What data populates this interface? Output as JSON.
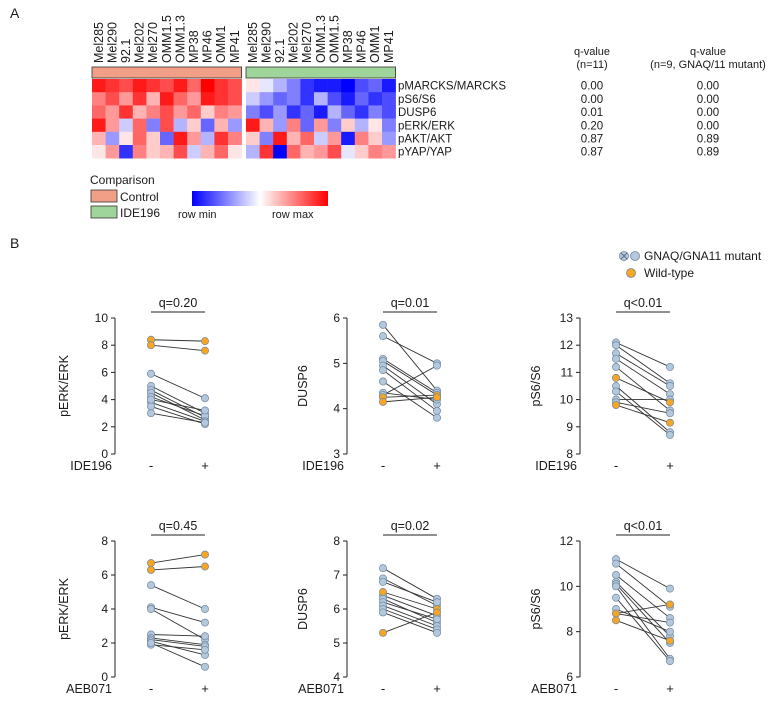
{
  "panel_labels": [
    "A",
    "B"
  ],
  "heatmap": {
    "samples_control": [
      "Mel285",
      "Mel290",
      "92.1",
      "Mel202",
      "Mel270",
      "OMM1.5",
      "OMM1.3",
      "MP38",
      "MP46",
      "OMM1",
      "MP41"
    ],
    "samples_ide": [
      "Mel285",
      "Mel290",
      "92.1",
      "Mel202",
      "Mel270",
      "OMM1.3",
      "OMM1.5",
      "MP38",
      "MP46",
      "OMM1",
      "MP41"
    ],
    "rows": [
      "pMARCKS/MARCKS",
      "pS6/S6",
      "DUSP6",
      "pERK/ERK",
      "pAKT/AKT",
      "pYAP/YAP"
    ],
    "qvalue_headers": [
      [
        "q-value",
        "(n=11)"
      ],
      [
        "q-value",
        "(n=9, GNAQ/11 mutant)"
      ]
    ],
    "q_all": [
      "0.00",
      "0.00",
      "0.01",
      "0.20",
      "0.87",
      "0.87"
    ],
    "q_mutant": [
      "0.00",
      "0.00",
      "0.00",
      "0.00",
      "0.89",
      "0.89"
    ],
    "values": [
      [
        0.9,
        0.8,
        0.7,
        0.9,
        0.8,
        0.7,
        0.9,
        0.6,
        1.0,
        0.8,
        0.7,
        0.1,
        -0.1,
        -0.3,
        -0.5,
        -0.8,
        -0.9,
        -0.9,
        -1.0,
        -0.7,
        -0.6,
        -0.9
      ],
      [
        0.5,
        0.7,
        0.4,
        0.8,
        0.3,
        0.9,
        0.6,
        0.4,
        0.9,
        0.8,
        0.7,
        -0.2,
        -0.4,
        -0.6,
        -0.5,
        -0.8,
        -0.3,
        -0.7,
        -0.9,
        -0.6,
        -0.8,
        -0.7
      ],
      [
        0.6,
        0.4,
        0.8,
        0.3,
        0.5,
        0.7,
        0.4,
        0.6,
        0.2,
        0.5,
        0.4,
        -0.5,
        -0.7,
        -0.4,
        -0.8,
        -0.6,
        -0.9,
        -0.3,
        -0.6,
        -0.8,
        -0.5,
        -0.7
      ],
      [
        0.9,
        0.4,
        -0.2,
        0.6,
        -0.5,
        0.7,
        -0.3,
        0.2,
        -0.6,
        0.3,
        -0.4,
        0.9,
        0.3,
        -0.4,
        0.5,
        -0.6,
        0.4,
        -0.5,
        0.2,
        -0.3,
        0.1,
        -0.5
      ],
      [
        0.3,
        -0.4,
        0.1,
        0.6,
        0.2,
        -0.6,
        0.9,
        0.4,
        -0.3,
        0.8,
        0.5,
        0.2,
        -0.5,
        0.9,
        0.3,
        0.6,
        -0.2,
        0.4,
        -0.9,
        0.5,
        0.2,
        -0.4
      ],
      [
        0.1,
        0.4,
        -0.8,
        0.5,
        0.2,
        0.3,
        0.7,
        -0.2,
        0.3,
        0.6,
        0.1,
        -0.3,
        0.8,
        -1.0,
        0.6,
        0.3,
        0.4,
        0.7,
        -0.1,
        0.2,
        0.5,
        0.4
      ]
    ],
    "legend_title": "Comparison",
    "legend_items": [
      {
        "label": "Control",
        "color": "#f19f86"
      },
      {
        "label": "IDE196",
        "color": "#9fd49a"
      }
    ],
    "scale_min_label": "row min",
    "scale_max_label": "row max",
    "scale_colors": {
      "min": "#0000ff",
      "mid": "#ffffff",
      "max": "#ff0000"
    }
  },
  "scatter_legend": [
    {
      "label": "GNAQ/GNA11 mutant",
      "color": "#b3c8dd"
    },
    {
      "label": "Wild-type",
      "color": "#f7a623"
    }
  ],
  "point_colors": {
    "mutant": "#b3c8dd",
    "wildtype": "#f7a623",
    "edge": "#6f879e"
  },
  "chart_data": [
    {
      "type": "scatter",
      "title": "q=0.20",
      "ylabel": "pERK/ERK",
      "treatment": "IDE196",
      "categories": [
        "-",
        "+"
      ],
      "ylim": [
        0,
        10
      ],
      "yticks": [
        "0",
        "2",
        "4",
        "6",
        "8",
        "10"
      ],
      "pairs_mutant": [
        [
          5.9,
          4.1
        ],
        [
          5.0,
          3.0
        ],
        [
          4.7,
          2.7
        ],
        [
          4.5,
          2.5
        ],
        [
          4.2,
          2.8
        ],
        [
          3.8,
          2.4
        ],
        [
          3.5,
          2.2
        ],
        [
          3.0,
          2.3
        ],
        [
          4.0,
          3.2
        ]
      ],
      "pairs_wildtype": [
        [
          8.4,
          8.3
        ],
        [
          8.0,
          7.6
        ]
      ]
    },
    {
      "type": "scatter",
      "title": "q=0.01",
      "ylabel": "DUSP6",
      "treatment": "IDE196",
      "categories": [
        "-",
        "+"
      ],
      "ylim": [
        3,
        6
      ],
      "yticks": [
        "3",
        "4",
        "5",
        "6"
      ],
      "pairs_mutant": [
        [
          5.85,
          4.4
        ],
        [
          5.6,
          5.0
        ],
        [
          5.1,
          4.35
        ],
        [
          5.05,
          4.3
        ],
        [
          4.95,
          4.1
        ],
        [
          4.85,
          3.95
        ],
        [
          4.6,
          3.8
        ],
        [
          4.35,
          4.2
        ],
        [
          4.3,
          4.95
        ]
      ],
      "pairs_wildtype": [
        [
          4.25,
          4.3
        ],
        [
          4.15,
          4.25
        ]
      ]
    },
    {
      "type": "scatter",
      "title": "q<0.01",
      "ylabel": "pS6/S6",
      "treatment": "IDE196",
      "categories": [
        "-",
        "+"
      ],
      "ylim": [
        8,
        13
      ],
      "yticks": [
        "8",
        "9",
        "10",
        "11",
        "12",
        "13"
      ],
      "pairs_mutant": [
        [
          12.1,
          11.2
        ],
        [
          12.0,
          10.6
        ],
        [
          11.7,
          10.5
        ],
        [
          11.5,
          10.2
        ],
        [
          11.2,
          9.6
        ],
        [
          10.5,
          8.8
        ],
        [
          10.3,
          8.7
        ],
        [
          10.0,
          10.0
        ],
        [
          9.9,
          9.5
        ]
      ],
      "pairs_wildtype": [
        [
          10.8,
          9.9
        ],
        [
          9.8,
          9.15
        ]
      ]
    },
    {
      "type": "scatter",
      "title": "q=0.45",
      "ylabel": "pERK/ERK",
      "treatment": "AEB071",
      "categories": [
        "-",
        "+"
      ],
      "ylim": [
        0,
        8
      ],
      "yticks": [
        "0",
        "2",
        "4",
        "6",
        "8"
      ],
      "pairs_mutant": [
        [
          5.4,
          4.0
        ],
        [
          4.1,
          3.2
        ],
        [
          4.0,
          2.2
        ],
        [
          2.5,
          2.4
        ],
        [
          2.3,
          1.9
        ],
        [
          2.2,
          1.8
        ],
        [
          2.1,
          1.3
        ],
        [
          1.9,
          1.6
        ],
        [
          2.0,
          0.6
        ]
      ],
      "pairs_wildtype": [
        [
          6.7,
          7.2
        ],
        [
          6.3,
          6.5
        ]
      ]
    },
    {
      "type": "scatter",
      "title": "q=0.02",
      "ylabel": "DUSP6",
      "treatment": "AEB071",
      "categories": [
        "-",
        "+"
      ],
      "ylim": [
        4,
        8
      ],
      "yticks": [
        "4",
        "5",
        "6",
        "7",
        "8"
      ],
      "pairs_mutant": [
        [
          7.2,
          6.3
        ],
        [
          6.9,
          6.1
        ],
        [
          6.8,
          6.2
        ],
        [
          6.4,
          5.8
        ],
        [
          6.3,
          5.6
        ],
        [
          6.2,
          5.7
        ],
        [
          6.1,
          5.5
        ],
        [
          6.0,
          5.4
        ],
        [
          5.9,
          5.3
        ]
      ],
      "pairs_wildtype": [
        [
          6.5,
          6.0
        ],
        [
          5.3,
          5.9
        ]
      ]
    },
    {
      "type": "scatter",
      "title": "q<0.01",
      "ylabel": "pS6/S6",
      "treatment": "AEB071",
      "categories": [
        "-",
        "+"
      ],
      "ylim": [
        6,
        12
      ],
      "yticks": [
        "6",
        "8",
        "10",
        "12"
      ],
      "pairs_mutant": [
        [
          11.2,
          9.9
        ],
        [
          11.0,
          9.1
        ],
        [
          10.5,
          8.6
        ],
        [
          10.2,
          7.8
        ],
        [
          10.1,
          7.5
        ],
        [
          10.0,
          6.8
        ],
        [
          9.5,
          6.7
        ],
        [
          9.0,
          8.0
        ],
        [
          8.8,
          8.4
        ]
      ],
      "pairs_wildtype": [
        [
          8.8,
          9.2
        ],
        [
          8.5,
          7.6
        ]
      ]
    }
  ]
}
